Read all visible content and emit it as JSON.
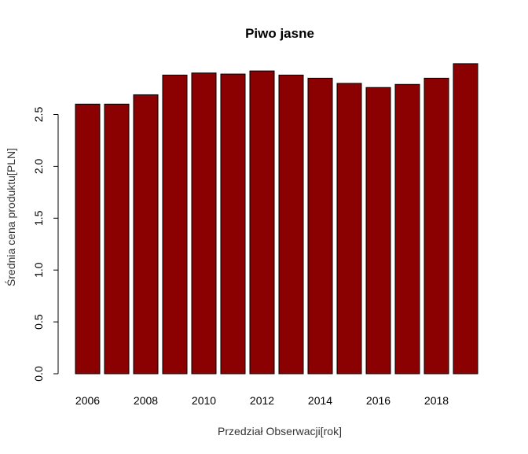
{
  "chart_data": {
    "type": "bar",
    "title": "Piwo jasne",
    "xlabel": "Przedział Obserwacji[rok]",
    "ylabel": "Średnia cena produktu[PLN]",
    "categories": [
      "2006",
      "2007",
      "2008",
      "2009",
      "2010",
      "2011",
      "2012",
      "2013",
      "2014",
      "2015",
      "2016",
      "2017",
      "2018",
      "2019"
    ],
    "x_tick_labels": [
      "2006",
      "2008",
      "2010",
      "2012",
      "2014",
      "2016",
      "2018"
    ],
    "values": [
      2.6,
      2.6,
      2.69,
      2.88,
      2.9,
      2.89,
      2.92,
      2.88,
      2.85,
      2.8,
      2.76,
      2.79,
      2.85,
      2.99
    ],
    "ylim": [
      0,
      3.0
    ],
    "y_ticks": [
      "0.0",
      "0.5",
      "1.0",
      "1.5",
      "2.0",
      "2.5"
    ],
    "bar_color": "#8b0000",
    "grid": false,
    "legend": "none"
  }
}
